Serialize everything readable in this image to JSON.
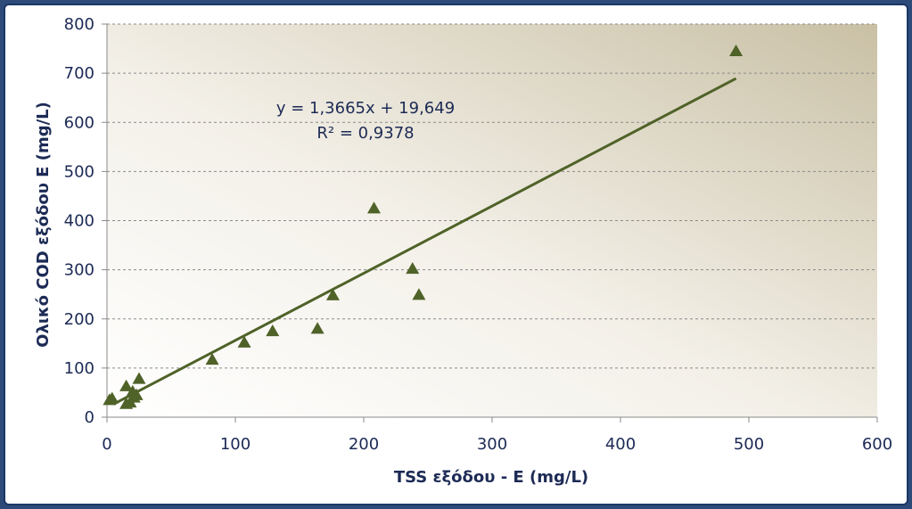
{
  "chart_data": {
    "type": "scatter",
    "xlabel": "TSS εξόδου - E (mg/L)",
    "ylabel": "Ολικό COD εξόδου E (mg/L)",
    "xlim": [
      0,
      600
    ],
    "ylim": [
      0,
      800
    ],
    "x_ticks": [
      "0",
      "100",
      "200",
      "300",
      "400",
      "500",
      "600"
    ],
    "y_ticks": [
      "0",
      "100",
      "200",
      "300",
      "400",
      "500",
      "600",
      "700",
      "800"
    ],
    "grid": "horizontal dashed",
    "points": [
      {
        "x": 2,
        "y": 35
      },
      {
        "x": 4,
        "y": 38
      },
      {
        "x": 15,
        "y": 27
      },
      {
        "x": 15,
        "y": 63
      },
      {
        "x": 18,
        "y": 30
      },
      {
        "x": 20,
        "y": 52
      },
      {
        "x": 21,
        "y": 40
      },
      {
        "x": 23,
        "y": 45
      },
      {
        "x": 25,
        "y": 78
      },
      {
        "x": 82,
        "y": 117
      },
      {
        "x": 107,
        "y": 152
      },
      {
        "x": 129,
        "y": 175
      },
      {
        "x": 164,
        "y": 180
      },
      {
        "x": 176,
        "y": 248
      },
      {
        "x": 208,
        "y": 425
      },
      {
        "x": 238,
        "y": 302
      },
      {
        "x": 243,
        "y": 249
      },
      {
        "x": 490,
        "y": 745
      }
    ],
    "trendline": {
      "slope": 1.3665,
      "intercept": 19.649,
      "x_range": [
        5,
        490
      ],
      "equation": "y = 1,3665x + 19,649",
      "r2_label": "R² = 0,9378"
    },
    "colors": {
      "marker": "#4f6228",
      "trendline": "#4f6228",
      "text": "#1c2a55",
      "frame": "#2e4a78",
      "plot_gradient_light": "#ffffff",
      "plot_gradient_dark": "#c9c0a5"
    }
  }
}
